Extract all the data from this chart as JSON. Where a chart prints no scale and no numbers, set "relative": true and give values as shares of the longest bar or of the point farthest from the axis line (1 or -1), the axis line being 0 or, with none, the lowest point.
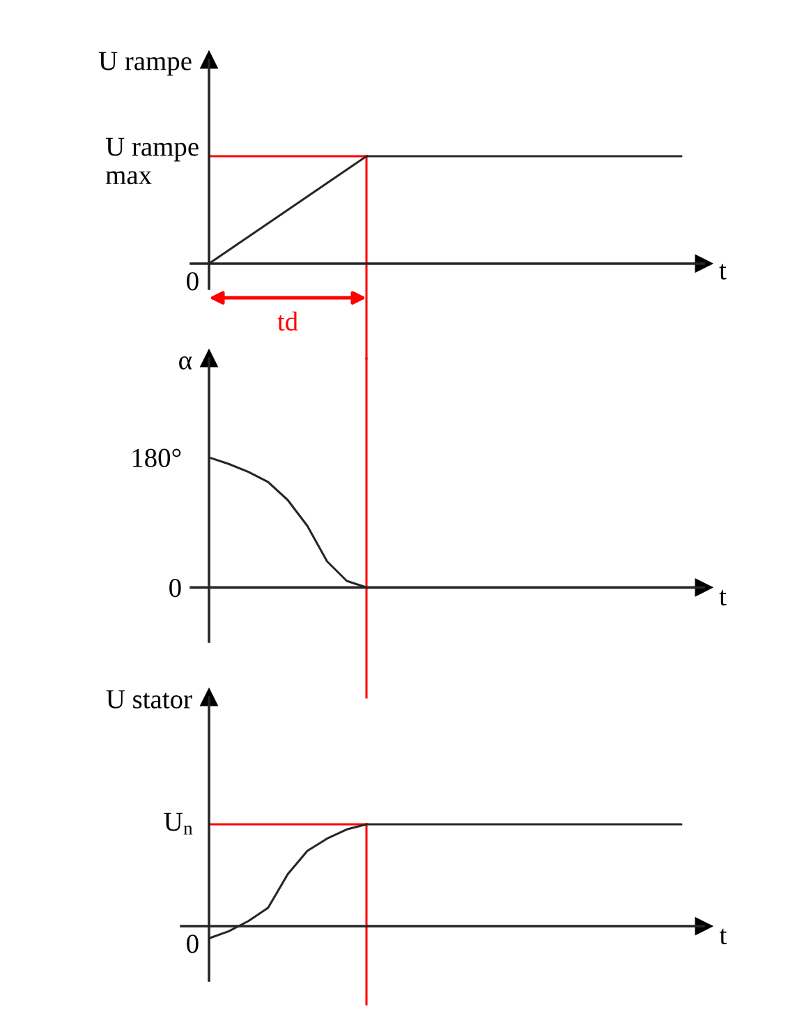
{
  "chart_data": [
    {
      "type": "line",
      "ylabel": "U rampe",
      "xlabel": "t",
      "relative": true,
      "tick_labels": false,
      "categories": [
        null,
        null,
        null,
        null,
        null,
        null,
        null,
        null,
        null,
        null,
        null,
        null,
        null,
        null,
        null,
        null,
        null,
        null,
        null,
        null,
        null,
        null,
        null,
        null,
        null
      ],
      "series": [
        {
          "color": "#262626",
          "values": [
            0,
            0.125,
            0.25,
            0.375,
            0.5,
            0.625,
            0.75,
            0.875,
            1,
            1,
            1,
            1,
            1,
            1,
            1,
            1,
            1,
            1,
            1,
            1,
            1,
            1,
            1,
            1,
            1
          ]
        }
      ],
      "ref_lines": [
        {
          "axis": "y",
          "value": 1,
          "label": "U rampe max",
          "color": "#ff0000"
        }
      ],
      "annotations": [
        "0",
        "td"
      ]
    },
    {
      "type": "line",
      "ylabel": "α",
      "xlabel": "t",
      "tick_labels": "y",
      "ylim": [
        -75,
        317
      ],
      "yticks": [
        0,
        {
          "value": 180,
          "label": "180°"
        }
      ],
      "categories": [
        null,
        null,
        null,
        null,
        null,
        null,
        null,
        null,
        null,
        null,
        null,
        null,
        null,
        null,
        null,
        null,
        null,
        null,
        null,
        null,
        null,
        null,
        null,
        null,
        null
      ],
      "series": [
        {
          "color": "#262626",
          "values": [
            180,
            171,
            160,
            146,
            121,
            85,
            36,
            9,
            0,
            null,
            null,
            null,
            null,
            null,
            null,
            null,
            null,
            null,
            null,
            null,
            null,
            null,
            null,
            null,
            null
          ]
        }
      ]
    },
    {
      "type": "line",
      "ylabel": "U stator",
      "xlabel": "t",
      "relative": true,
      "tick_labels": false,
      "categories": [
        null,
        null,
        null,
        null,
        null,
        null,
        null,
        null,
        null,
        null,
        null,
        null,
        null,
        null,
        null,
        null,
        null,
        null,
        null,
        null,
        null,
        null,
        null,
        null,
        null
      ],
      "series": [
        {
          "color": "#262626",
          "values": [
            -0.12,
            -0.05,
            0.05,
            0.18,
            0.51,
            0.74,
            0.86,
            0.95,
            1,
            1,
            1,
            1,
            1,
            1,
            1,
            1,
            1,
            1,
            1,
            1,
            1,
            1,
            1,
            1,
            1
          ]
        }
      ],
      "ref_lines": [
        {
          "axis": "y",
          "value": 1,
          "label": "U$_{n}$",
          "color": "#ff0000"
        }
      ],
      "annotations": [
        "0"
      ]
    }
  ]
}
